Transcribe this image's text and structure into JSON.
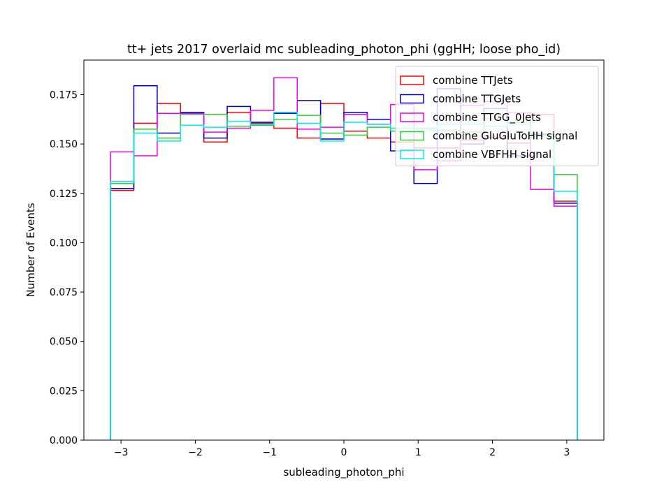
{
  "chart_data": {
    "type": "step-histogram",
    "title": "tt+ jets 2017 overlaid mc subleading_photon_phi (ggHH; loose pho_id)",
    "xlabel": "subleading_photon_phi",
    "ylabel": "Number of Events",
    "xlim": [
      -3.5,
      3.5
    ],
    "ylim": [
      0.0,
      0.1925
    ],
    "xticks": [
      -3,
      -2,
      -1,
      0,
      1,
      2,
      3
    ],
    "xtick_labels": [
      "−3",
      "−2",
      "−1",
      "0",
      "1",
      "2",
      "3"
    ],
    "yticks": [
      0.0,
      0.025,
      0.05,
      0.075,
      0.1,
      0.125,
      0.15,
      0.175
    ],
    "ytick_labels": [
      "0.000",
      "0.025",
      "0.050",
      "0.075",
      "0.100",
      "0.125",
      "0.150",
      "0.175"
    ],
    "bin_edges": [
      -3.1416,
      -2.8274,
      -2.5133,
      -2.1991,
      -1.885,
      -1.5708,
      -1.2566,
      -0.9425,
      -0.6283,
      -0.3142,
      0.0,
      0.3142,
      0.6283,
      0.9425,
      1.2566,
      1.5708,
      1.885,
      2.1991,
      2.5133,
      2.8274,
      3.1416
    ],
    "legend_position": "upper right",
    "series": [
      {
        "name": "combine TTJets",
        "color": "#ff0000",
        "values": [
          0.1265,
          0.1605,
          0.1705,
          0.1595,
          0.151,
          0.166,
          0.1605,
          0.158,
          0.153,
          0.1705,
          0.1565,
          0.153,
          0.151,
          0.148,
          0.148,
          0.152,
          0.1535,
          0.1505,
          0.165,
          0.121
        ]
      },
      {
        "name": "combine TTGJets",
        "color": "#0000cc",
        "values": [
          0.1275,
          0.1795,
          0.1555,
          0.166,
          0.153,
          0.169,
          0.161,
          0.1655,
          0.172,
          0.1525,
          0.166,
          0.1625,
          0.1465,
          0.13,
          0.178,
          0.15,
          0.168,
          0.144,
          0.155,
          0.12
        ]
      },
      {
        "name": "combine TTGG_0Jets",
        "color": "#ee00ee",
        "values": [
          0.146,
          0.144,
          0.1655,
          0.1655,
          0.156,
          0.158,
          0.167,
          0.1835,
          0.1575,
          0.1585,
          0.165,
          0.16,
          0.17,
          0.137,
          0.1415,
          0.1695,
          0.1715,
          0.166,
          0.127,
          0.1185
        ]
      },
      {
        "name": "combine GluGluToHH signal",
        "color": "#33cc33",
        "values": [
          0.13,
          0.1575,
          0.153,
          0.165,
          0.165,
          0.159,
          0.1595,
          0.1625,
          0.1645,
          0.1555,
          0.1545,
          0.1585,
          0.1565,
          0.158,
          0.157,
          0.156,
          0.159,
          0.161,
          0.154,
          0.1345
        ]
      },
      {
        "name": "combine VBFHH signal",
        "color": "#00eeee",
        "values": [
          0.131,
          0.1555,
          0.1515,
          0.1595,
          0.1585,
          0.1615,
          0.16,
          0.166,
          0.1605,
          0.1515,
          0.161,
          0.16,
          0.158,
          0.157,
          0.16,
          0.16,
          0.159,
          0.16,
          0.1545,
          0.126
        ]
      }
    ]
  }
}
